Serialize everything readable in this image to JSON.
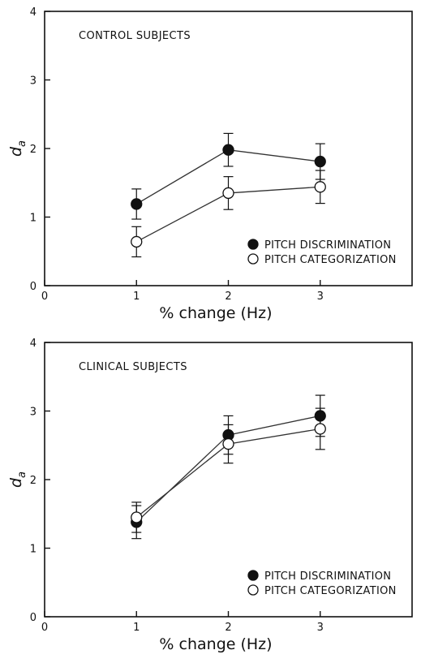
{
  "chart_data": [
    {
      "type": "line",
      "title": "CONTROL SUBJECTS",
      "xlabel": "% change (Hz)",
      "ylabel_main": "d",
      "ylabel_sub": "a",
      "xlim": [
        0,
        4
      ],
      "ylim": [
        0,
        4
      ],
      "x_ticks": [
        0,
        1,
        2,
        3
      ],
      "y_ticks": [
        0,
        1,
        2,
        3,
        4
      ],
      "grid": false,
      "legend_position": "bottom-right",
      "series": [
        {
          "name": "PITCH DISCRIMINATION",
          "marker": "filled-circle",
          "x": [
            1,
            2,
            3
          ],
          "y": [
            1.19,
            1.98,
            1.81
          ],
          "err": [
            0.22,
            0.24,
            0.26
          ]
        },
        {
          "name": "PITCH CATEGORIZATION",
          "marker": "open-circle",
          "x": [
            1,
            2,
            3
          ],
          "y": [
            0.64,
            1.35,
            1.44
          ],
          "err": [
            0.22,
            0.24,
            0.24
          ]
        }
      ]
    },
    {
      "type": "line",
      "title": "CLINICAL SUBJECTS",
      "xlabel": "% change (Hz)",
      "ylabel_main": "d",
      "ylabel_sub": "a",
      "xlim": [
        0,
        4
      ],
      "ylim": [
        0,
        4
      ],
      "x_ticks": [
        0,
        1,
        2,
        3
      ],
      "y_ticks": [
        0,
        1,
        2,
        3,
        4
      ],
      "grid": false,
      "legend_position": "bottom-right",
      "series": [
        {
          "name": "PITCH DISCRIMINATION",
          "marker": "filled-circle",
          "x": [
            1,
            2,
            3
          ],
          "y": [
            1.38,
            2.65,
            2.93
          ],
          "err": [
            0.24,
            0.28,
            0.3
          ]
        },
        {
          "name": "PITCH CATEGORIZATION",
          "marker": "open-circle",
          "x": [
            1,
            2,
            3
          ],
          "y": [
            1.45,
            2.52,
            2.74
          ],
          "err": [
            0.22,
            0.28,
            0.3
          ]
        }
      ]
    }
  ]
}
